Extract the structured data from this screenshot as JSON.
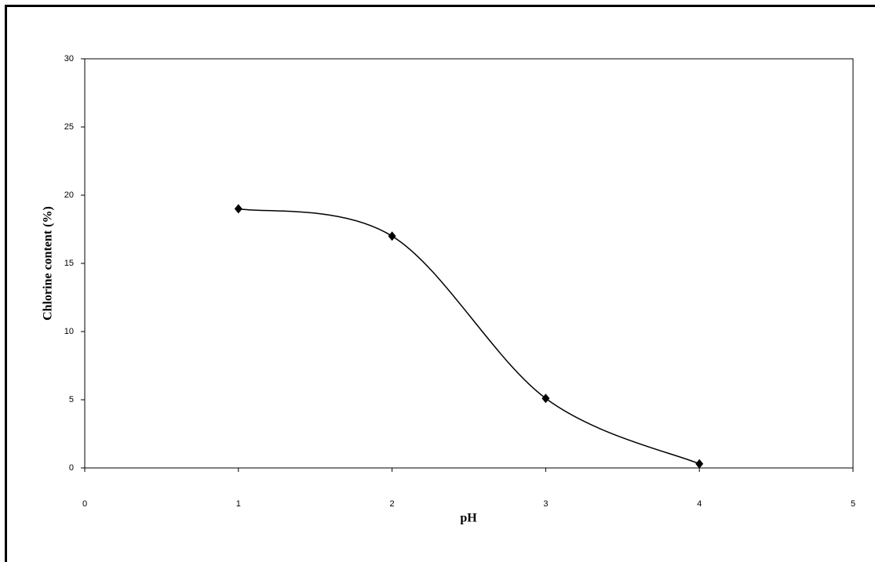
{
  "chart_data": {
    "type": "scatter",
    "x_label": "pH",
    "y_label": "Chlorine content (%)",
    "x": [
      1,
      2,
      3,
      4
    ],
    "series": [
      {
        "color": "#000000",
        "values": [
          19,
          17,
          5.1,
          0.3
        ]
      }
    ],
    "xlim": [
      0,
      5
    ],
    "xticks": [
      0,
      1,
      2,
      3,
      4,
      5
    ],
    "ylim": [
      0,
      30
    ],
    "yticks": [
      0,
      5,
      10,
      15,
      20,
      25,
      30
    ],
    "smooth_line": true,
    "grid": false
  }
}
